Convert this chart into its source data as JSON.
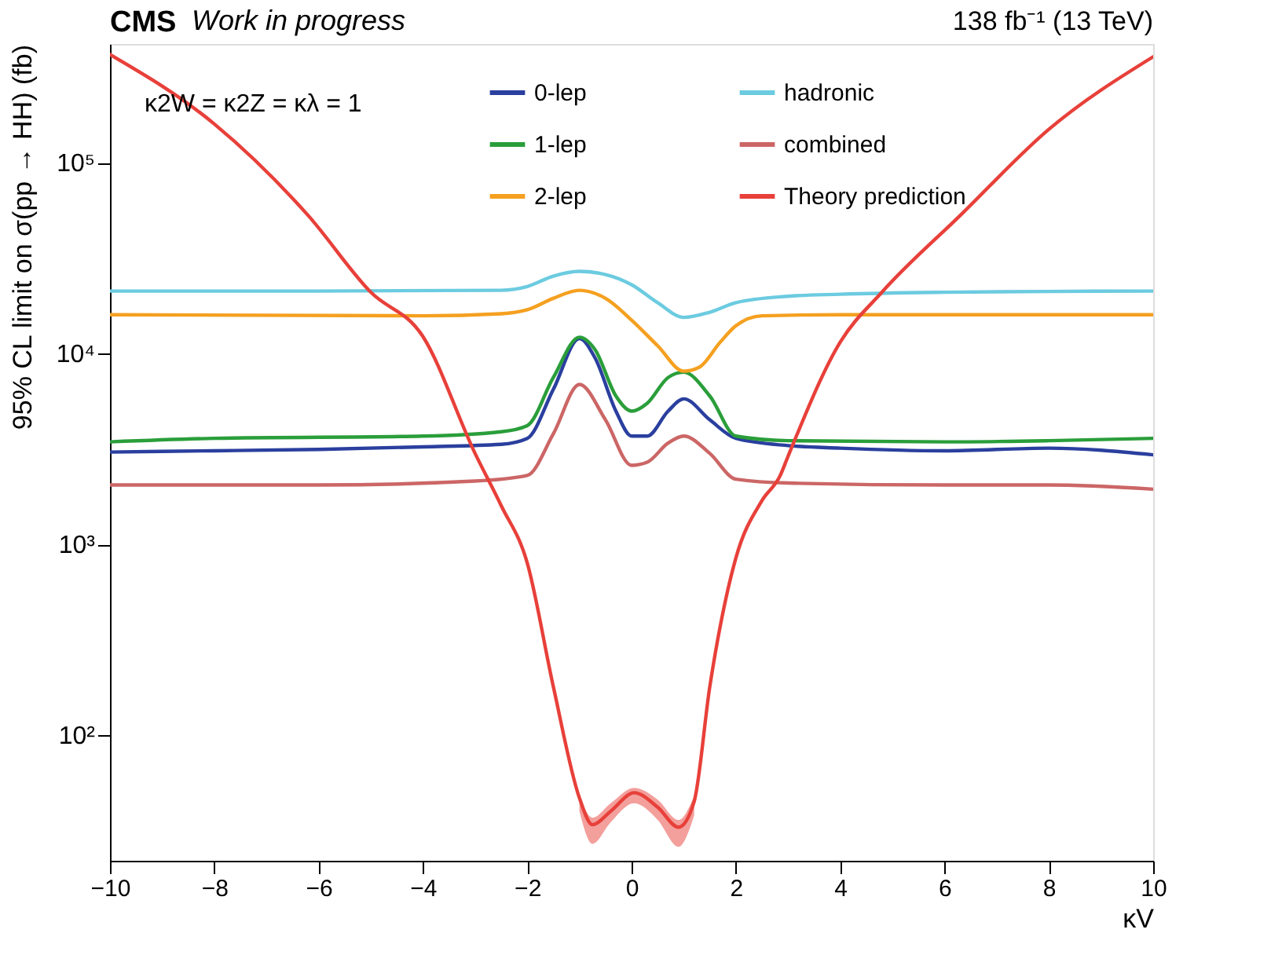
{
  "chart_data": {
    "type": "line",
    "title": "CMS",
    "subtitle": "Work in progress",
    "xlabel": "κV",
    "ylabel": "95% CL limit on σ(pp → HH) (fb)",
    "annotations": [
      "138 fb⁻¹ (13 TeV)",
      "κ2W = κ2Z = κλ = 1"
    ],
    "xlim": [
      -10,
      10
    ],
    "xticks": [
      -10,
      -8,
      -6,
      -4,
      -2,
      0,
      2,
      4,
      6,
      8,
      10
    ],
    "ylim": [
      22,
      420000
    ],
    "yticks": [
      {
        "value": 100,
        "label": "10²"
      },
      {
        "value": 1000,
        "label": "10³"
      },
      {
        "value": 10000,
        "label": "10⁴"
      },
      {
        "value": 100000,
        "label": "10⁵"
      }
    ],
    "log": "y",
    "grid": false,
    "legend": "top",
    "marker": "none",
    "line_style": "solid",
    "series": [
      {
        "name": "0-lep",
        "color": "#2a3f9e",
        "x": [
          -10,
          -8,
          -6,
          -4,
          -2.5,
          -2,
          -1.5,
          -1,
          -0.7,
          -0.3,
          0,
          0.3,
          0.7,
          1,
          1.5,
          2,
          3,
          4,
          6,
          8,
          10
        ],
        "values": [
          3050,
          3100,
          3150,
          3250,
          3350,
          3600,
          6500,
          12000,
          9500,
          5000,
          3700,
          3700,
          5000,
          5800,
          4500,
          3600,
          3300,
          3200,
          3100,
          3200,
          2950
        ]
      },
      {
        "name": "1-lep",
        "color": "#2a9e3a",
        "x": [
          -10,
          -8,
          -4,
          -2.5,
          -2,
          -1.5,
          -1,
          -0.7,
          -0.3,
          0,
          0.3,
          0.7,
          1,
          1.5,
          2,
          3,
          6,
          8,
          10
        ],
        "values": [
          3450,
          3600,
          3700,
          3900,
          4200,
          7500,
          12200,
          10500,
          6000,
          5000,
          5500,
          7500,
          8000,
          6000,
          3700,
          3500,
          3450,
          3500,
          3600
        ]
      },
      {
        "name": "2-lep",
        "color": "#f5a020",
        "x": [
          -10,
          -4,
          -2.5,
          -2,
          -1.5,
          -1,
          -0.5,
          0,
          0.5,
          1,
          1.3,
          1.7,
          2,
          2.5,
          4,
          10
        ],
        "values": [
          16000,
          15800,
          16200,
          17000,
          19500,
          21500,
          19500,
          15000,
          11000,
          8100,
          8500,
          11500,
          14000,
          15800,
          16000,
          16000
        ]
      },
      {
        "name": "hadronic",
        "color": "#6ccbe0",
        "x": [
          -10,
          -6,
          -2.5,
          -2,
          -1.5,
          -1,
          -0.5,
          0,
          0.5,
          1,
          1.5,
          2,
          3,
          4,
          6,
          8,
          10
        ],
        "values": [
          21300,
          21300,
          21500,
          22500,
          25500,
          27000,
          26000,
          23000,
          18500,
          15500,
          16500,
          18500,
          20000,
          20500,
          21000,
          21200,
          21300
        ]
      },
      {
        "name": "combined",
        "color": "#cc6666",
        "x": [
          -10,
          -6,
          -3,
          -2,
          -1.5,
          -1,
          -0.5,
          0,
          0.3,
          0.7,
          1,
          1.5,
          2,
          3,
          6,
          8,
          10
        ],
        "values": [
          2050,
          2050,
          2150,
          2300,
          3800,
          6900,
          4500,
          2600,
          2700,
          3400,
          3700,
          3000,
          2200,
          2100,
          2050,
          2050,
          1950
        ]
      },
      {
        "name": "Theory prediction",
        "color": "#e8403a",
        "x": [
          -10,
          -8,
          -6.2,
          -5,
          -4,
          -3,
          -2.5,
          -2,
          -1.5,
          -1,
          -0.75,
          -0.4,
          0.05,
          0.5,
          0.9,
          1.2,
          1.5,
          2,
          2.5,
          2.85,
          3,
          4,
          4.8,
          6.3,
          8,
          10
        ],
        "values": [
          370000,
          160000,
          53000,
          21000,
          12300,
          3000,
          1600,
          800,
          180,
          47,
          34,
          40,
          50,
          42,
          33,
          45,
          180,
          850,
          1700,
          2300,
          2900,
          11500,
          21000,
          53000,
          150000,
          360000
        ],
        "lower": [
          null,
          null,
          null,
          null,
          null,
          null,
          null,
          null,
          null,
          40,
          27,
          35,
          44,
          36,
          26,
          38,
          null,
          null,
          null,
          null,
          null,
          null,
          null,
          null,
          null,
          null
        ],
        "upper": [
          null,
          null,
          null,
          null,
          null,
          null,
          null,
          null,
          null,
          48,
          37,
          44,
          53,
          46,
          36,
          48,
          null,
          null,
          null,
          null,
          null,
          null,
          null,
          null,
          null,
          null
        ]
      }
    ]
  }
}
